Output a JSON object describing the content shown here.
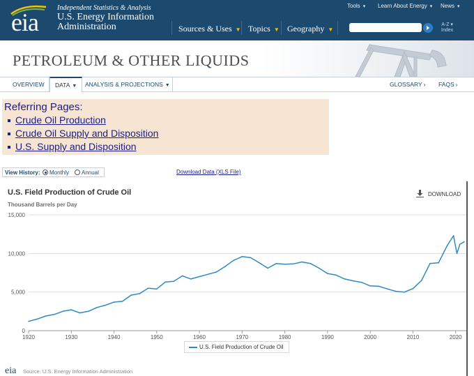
{
  "header": {
    "logo": "eia",
    "tagline": "Independent Statistics & Analysis",
    "agency_line1": "U.S. Energy Information",
    "agency_line2": "Administration",
    "utility_nav": [
      "Tools",
      "Learn About Energy",
      "News"
    ],
    "main_nav": [
      "Sources & Uses",
      "Topics",
      "Geography"
    ],
    "search_placeholder": "",
    "az_line1": "A-Z",
    "az_line2": "Index",
    "colors": {
      "bar": "#1c4a6e",
      "nav_caret": "#f2c200",
      "search_button": "#2e7fc1"
    }
  },
  "section": {
    "title": "PETROLEUM & OTHER LIQUIDS"
  },
  "subnav": {
    "tabs": [
      "OVERVIEW",
      "DATA",
      "ANALYSIS & PROJECTIONS"
    ],
    "active_tab": "DATA",
    "right_links": [
      "GLOSSARY",
      "FAQS"
    ]
  },
  "referring": {
    "title": "Referring Pages:",
    "links": [
      "Crude Oil Production",
      "Crude Oil Supply and Disposition",
      "U.S. Supply and Disposition"
    ],
    "background": "#f6e5d2"
  },
  "view_history": {
    "label": "View History:",
    "options": [
      "Monthly",
      "Annual"
    ],
    "selected": "Monthly"
  },
  "download_xls": "Download Data (XLS File)",
  "chart": {
    "download_label": "DOWNLOAD",
    "source": "Source: U.S. Energy Information Administration"
  },
  "chart_data": {
    "type": "line",
    "title": "U.S. Field Production of Crude Oil",
    "ylabel": "Thousand Barrels per Day",
    "xlabel": "",
    "xlim": [
      1920,
      2022.5
    ],
    "ylim": [
      0,
      15000
    ],
    "x_ticks": [
      1920,
      1930,
      1940,
      1950,
      1960,
      1970,
      1980,
      1990,
      2000,
      2010,
      2020
    ],
    "y_ticks": [
      0,
      5000,
      10000,
      15000
    ],
    "y_tick_labels": [
      "0",
      "5,000",
      "10,000",
      "15,000"
    ],
    "grid": "horizontal",
    "legend": "bottom",
    "series": [
      {
        "name": "U.S. Field Production of Crude Oil",
        "color": "#2e8bc0",
        "x": [
          1920,
          1922,
          1924,
          1926,
          1928,
          1930,
          1932,
          1934,
          1936,
          1938,
          1940,
          1942,
          1944,
          1946,
          1948,
          1950,
          1952,
          1954,
          1956,
          1958,
          1960,
          1962,
          1964,
          1966,
          1968,
          1970,
          1972,
          1974,
          1976,
          1978,
          1980,
          1982,
          1984,
          1986,
          1988,
          1990,
          1992,
          1994,
          1996,
          1998,
          2000,
          2002,
          2004,
          2006,
          2008,
          2010,
          2012,
          2014,
          2016,
          2018,
          2019.5,
          2020.3,
          2021,
          2022
        ],
        "values": [
          1200,
          1500,
          1900,
          2100,
          2500,
          2700,
          2300,
          2500,
          3000,
          3300,
          3700,
          3800,
          4600,
          4800,
          5500,
          5400,
          6300,
          6400,
          7100,
          6700,
          7000,
          7300,
          7600,
          8300,
          9100,
          9600,
          9450,
          8800,
          8100,
          8700,
          8600,
          8650,
          8900,
          8700,
          8100,
          7400,
          7200,
          6700,
          6450,
          6250,
          5800,
          5750,
          5400,
          5100,
          5000,
          5450,
          6500,
          8700,
          8800,
          11000,
          12300,
          10000,
          11200,
          11500
        ]
      }
    ]
  },
  "footer": {
    "logo": "eia"
  }
}
